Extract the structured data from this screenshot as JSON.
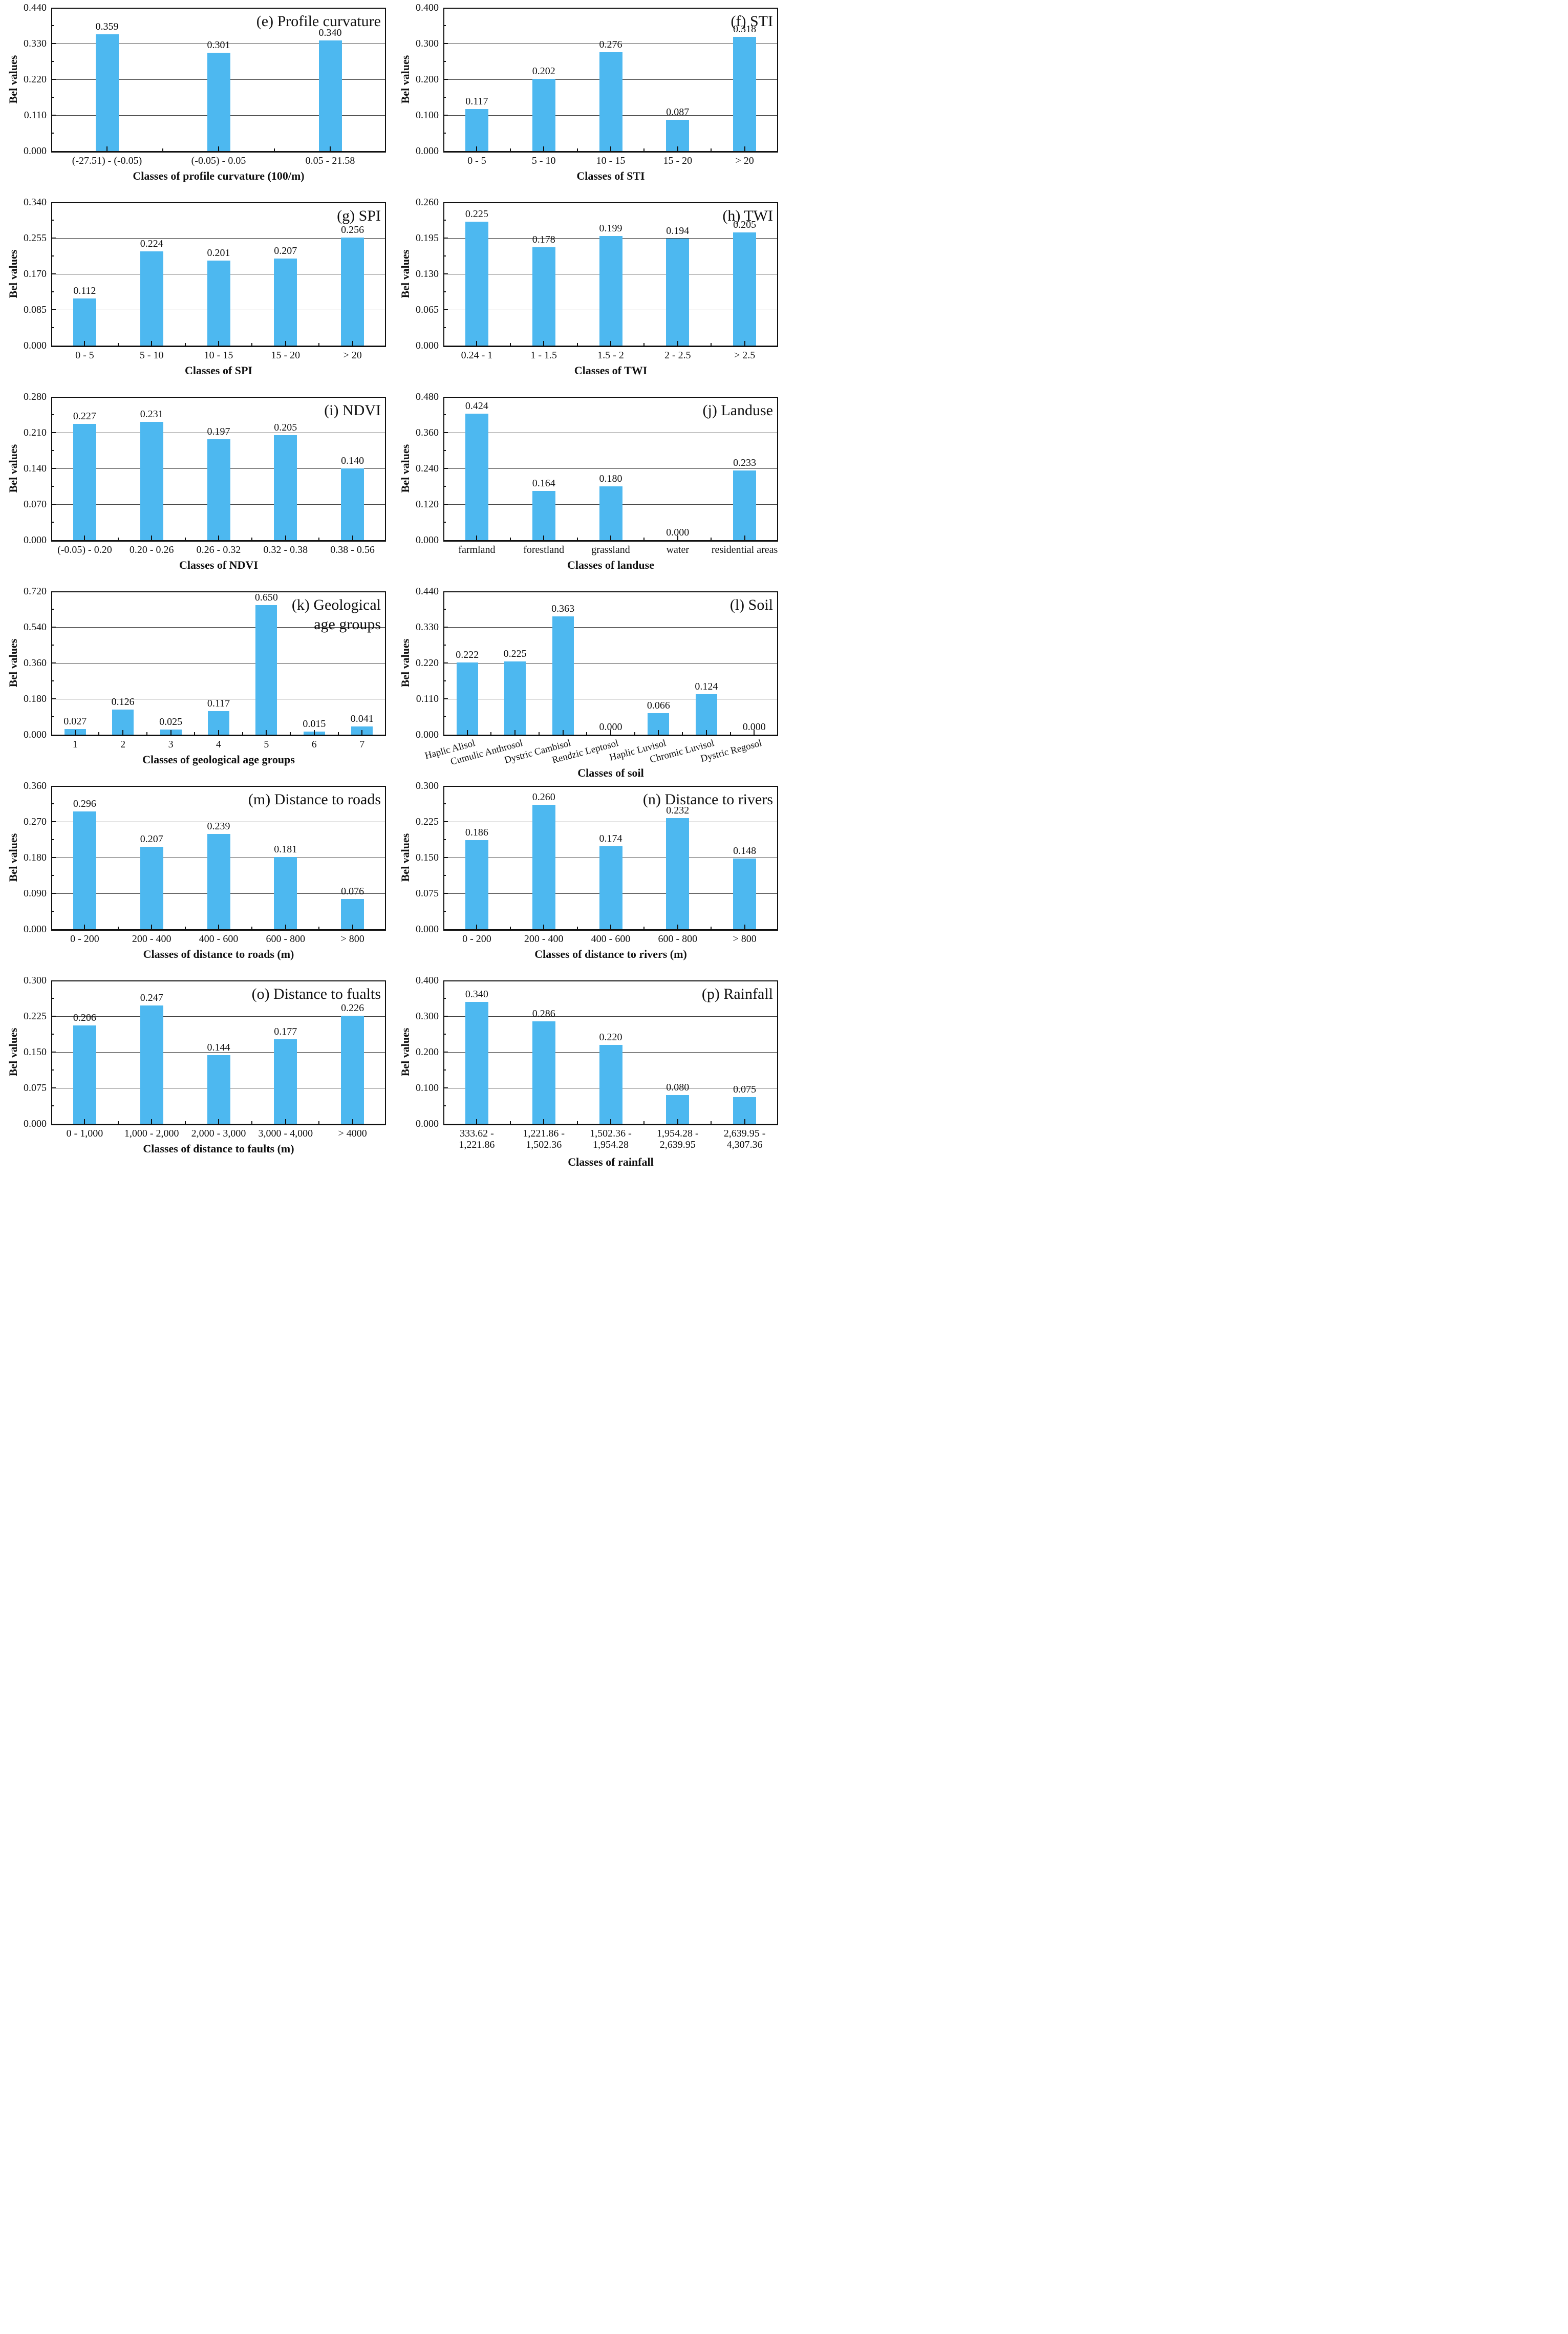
{
  "figure": {
    "ylabel": "Bel values",
    "bar_color": "#4DB8F0",
    "axis_color": "#111111",
    "gridline_color": "#3f3f3f",
    "panel_ids": [
      "e",
      "f",
      "g",
      "h",
      "i",
      "j",
      "k",
      "l",
      "m",
      "n",
      "o",
      "p"
    ]
  },
  "chart_data": [
    {
      "id": "e",
      "type": "bar",
      "title_lines": [
        "(e) Profile curvature"
      ],
      "xlabel": "Classes of profile curvature (100/m)",
      "ylabel": "Bel values",
      "categories": [
        "(-27.51) - (-0.05)",
        "(-0.05) - 0.05",
        "0.05 - 21.58"
      ],
      "values": [
        0.359,
        0.301,
        0.34
      ],
      "value_labels": [
        "0.359",
        "0.301",
        "0.340"
      ],
      "ylim": [
        0,
        0.44
      ],
      "yticks": [
        "0.000",
        "0.110",
        "0.220",
        "0.330",
        "0.440"
      ],
      "rotated_labels": false
    },
    {
      "id": "f",
      "type": "bar",
      "title_lines": [
        "(f) STI"
      ],
      "xlabel": "Classes of STI",
      "ylabel": "Bel values",
      "categories": [
        "0 - 5",
        "5 - 10",
        "10 - 15",
        "15 - 20",
        "> 20"
      ],
      "values": [
        0.117,
        0.202,
        0.276,
        0.087,
        0.318
      ],
      "value_labels": [
        "0.117",
        "0.202",
        "0.276",
        "0.087",
        "0.318"
      ],
      "ylim": [
        0,
        0.4
      ],
      "yticks": [
        "0.000",
        "0.100",
        "0.200",
        "0.300",
        "0.400"
      ],
      "rotated_labels": false
    },
    {
      "id": "g",
      "type": "bar",
      "title_lines": [
        "(g) SPI"
      ],
      "xlabel": "Classes of SPI",
      "ylabel": "Bel values",
      "categories": [
        "0 - 5",
        "5 - 10",
        "10 - 15",
        "15 - 20",
        "> 20"
      ],
      "values": [
        0.112,
        0.224,
        0.201,
        0.207,
        0.256
      ],
      "value_labels": [
        "0.112",
        "0.224",
        "0.201",
        "0.207",
        "0.256"
      ],
      "ylim": [
        0,
        0.34
      ],
      "yticks": [
        "0.000",
        "0.085",
        "0.170",
        "0.255",
        "0.340"
      ],
      "rotated_labels": false
    },
    {
      "id": "h",
      "type": "bar",
      "title_lines": [
        "(h) TWI"
      ],
      "xlabel": "Classes of TWI",
      "ylabel": "Bel values",
      "categories": [
        "0.24 - 1",
        "1 - 1.5",
        "1.5 - 2",
        "2 - 2.5",
        "> 2.5"
      ],
      "values": [
        0.225,
        0.178,
        0.199,
        0.194,
        0.205
      ],
      "value_labels": [
        "0.225",
        "0.178",
        "0.199",
        "0.194",
        "0.205"
      ],
      "ylim": [
        0,
        0.26
      ],
      "yticks": [
        "0.000",
        "0.065",
        "0.130",
        "0.195",
        "0.260"
      ],
      "rotated_labels": false
    },
    {
      "id": "i",
      "type": "bar",
      "title_lines": [
        "(i) NDVI"
      ],
      "xlabel": "Classes of NDVI",
      "ylabel": "Bel values",
      "categories": [
        "(-0.05) - 0.20",
        "0.20 - 0.26",
        "0.26 - 0.32",
        "0.32 - 0.38",
        "0.38 - 0.56"
      ],
      "values": [
        0.227,
        0.231,
        0.197,
        0.205,
        0.14
      ],
      "value_labels": [
        "0.227",
        "0.231",
        "0.197",
        "0.205",
        "0.140"
      ],
      "ylim": [
        0,
        0.28
      ],
      "yticks": [
        "0.000",
        "0.070",
        "0.140",
        "0.210",
        "0.280"
      ],
      "rotated_labels": false
    },
    {
      "id": "j",
      "type": "bar",
      "title_lines": [
        "(j) Landuse"
      ],
      "xlabel": "Classes of landuse",
      "ylabel": "Bel values",
      "categories": [
        "farmland",
        "forestland",
        "grassland",
        "water",
        "residential areas"
      ],
      "values": [
        0.424,
        0.164,
        0.18,
        0.0,
        0.233
      ],
      "value_labels": [
        "0.424",
        "0.164",
        "0.180",
        "0.000",
        "0.233"
      ],
      "ylim": [
        0,
        0.48
      ],
      "yticks": [
        "0.000",
        "0.120",
        "0.240",
        "0.360",
        "0.480"
      ],
      "rotated_labels": false
    },
    {
      "id": "k",
      "type": "bar",
      "title_lines": [
        "(k) Geological",
        "age groups"
      ],
      "xlabel": "Classes of geological age groups",
      "ylabel": "Bel values",
      "categories": [
        "1",
        "2",
        "3",
        "4",
        "5",
        "6",
        "7"
      ],
      "values": [
        0.027,
        0.126,
        0.025,
        0.117,
        0.65,
        0.015,
        0.041
      ],
      "value_labels": [
        "0.027",
        "0.126",
        "0.025",
        "0.117",
        "0.650",
        "0.015",
        "0.041"
      ],
      "ylim": [
        0,
        0.72
      ],
      "yticks": [
        "0.000",
        "0.180",
        "0.360",
        "0.540",
        "0.720"
      ],
      "rotated_labels": false
    },
    {
      "id": "l",
      "type": "bar",
      "title_lines": [
        "(l) Soil"
      ],
      "xlabel": "Classes of soil",
      "ylabel": "Bel values",
      "categories": [
        "Haplic Alisol",
        "Cumulic Anthrosol",
        "Dystric Cambisol",
        "Rendzic Leptosol",
        "Haplic Luvisol",
        "Chromic Luvisol",
        "Dystric Regosol"
      ],
      "values": [
        0.222,
        0.225,
        0.363,
        0.0,
        0.066,
        0.124,
        0.0
      ],
      "value_labels": [
        "0.222",
        "0.225",
        "0.363",
        "0.000",
        "0.066",
        "0.124",
        "0.000"
      ],
      "ylim": [
        0,
        0.44
      ],
      "yticks": [
        "0.000",
        "0.110",
        "0.220",
        "0.330",
        "0.440"
      ],
      "rotated_labels": true
    },
    {
      "id": "m",
      "type": "bar",
      "title_lines": [
        "(m) Distance to roads"
      ],
      "xlabel": "Classes of distance to roads (m)",
      "ylabel": "Bel values",
      "categories": [
        "0 - 200",
        "200 - 400",
        "400 - 600",
        "600 - 800",
        "> 800"
      ],
      "values": [
        0.296,
        0.207,
        0.239,
        0.181,
        0.076
      ],
      "value_labels": [
        "0.296",
        "0.207",
        "0.239",
        "0.181",
        "0.076"
      ],
      "ylim": [
        0,
        0.36
      ],
      "yticks": [
        "0.000",
        "0.090",
        "0.180",
        "0.270",
        "0.360"
      ],
      "rotated_labels": false
    },
    {
      "id": "n",
      "type": "bar",
      "title_lines": [
        "(n) Distance to rivers"
      ],
      "xlabel": "Classes of distance to rivers (m)",
      "ylabel": "Bel values",
      "categories": [
        "0 - 200",
        "200 - 400",
        "400 - 600",
        "600 - 800",
        "> 800"
      ],
      "values": [
        0.186,
        0.26,
        0.174,
        0.232,
        0.148
      ],
      "value_labels": [
        "0.186",
        "0.260",
        "0.174",
        "0.232",
        "0.148"
      ],
      "ylim": [
        0,
        0.3
      ],
      "yticks": [
        "0.000",
        "0.075",
        "0.150",
        "0.225",
        "0.300"
      ],
      "rotated_labels": false
    },
    {
      "id": "o",
      "type": "bar",
      "title_lines": [
        "(o) Distance to fualts"
      ],
      "xlabel": "Classes of distance to faults (m)",
      "ylabel": "Bel values",
      "categories": [
        "0 - 1,000",
        "1,000 - 2,000",
        "2,000 - 3,000",
        "3,000 - 4,000",
        "> 4000"
      ],
      "values": [
        0.206,
        0.247,
        0.144,
        0.177,
        0.226
      ],
      "value_labels": [
        "0.206",
        "0.247",
        "0.144",
        "0.177",
        "0.226"
      ],
      "ylim": [
        0,
        0.3
      ],
      "yticks": [
        "0.000",
        "0.075",
        "0.150",
        "0.225",
        "0.300"
      ],
      "rotated_labels": false
    },
    {
      "id": "p",
      "type": "bar",
      "title_lines": [
        "(p) Rainfall"
      ],
      "xlabel": "Classes of rainfall",
      "ylabel": "Bel values",
      "categories": [
        "333.62 -\n1,221.86",
        "1,221.86 -\n1,502.36",
        "1,502.36 -\n1,954.28",
        "1,954.28 -\n2,639.95",
        "2,639.95 -\n4,307.36"
      ],
      "values": [
        0.34,
        0.286,
        0.22,
        0.08,
        0.075
      ],
      "value_labels": [
        "0.340",
        "0.286",
        "0.220",
        "0.080",
        "0.075"
      ],
      "ylim": [
        0,
        0.4
      ],
      "yticks": [
        "0.000",
        "0.100",
        "0.200",
        "0.300",
        "0.400"
      ],
      "rotated_labels": false
    }
  ]
}
